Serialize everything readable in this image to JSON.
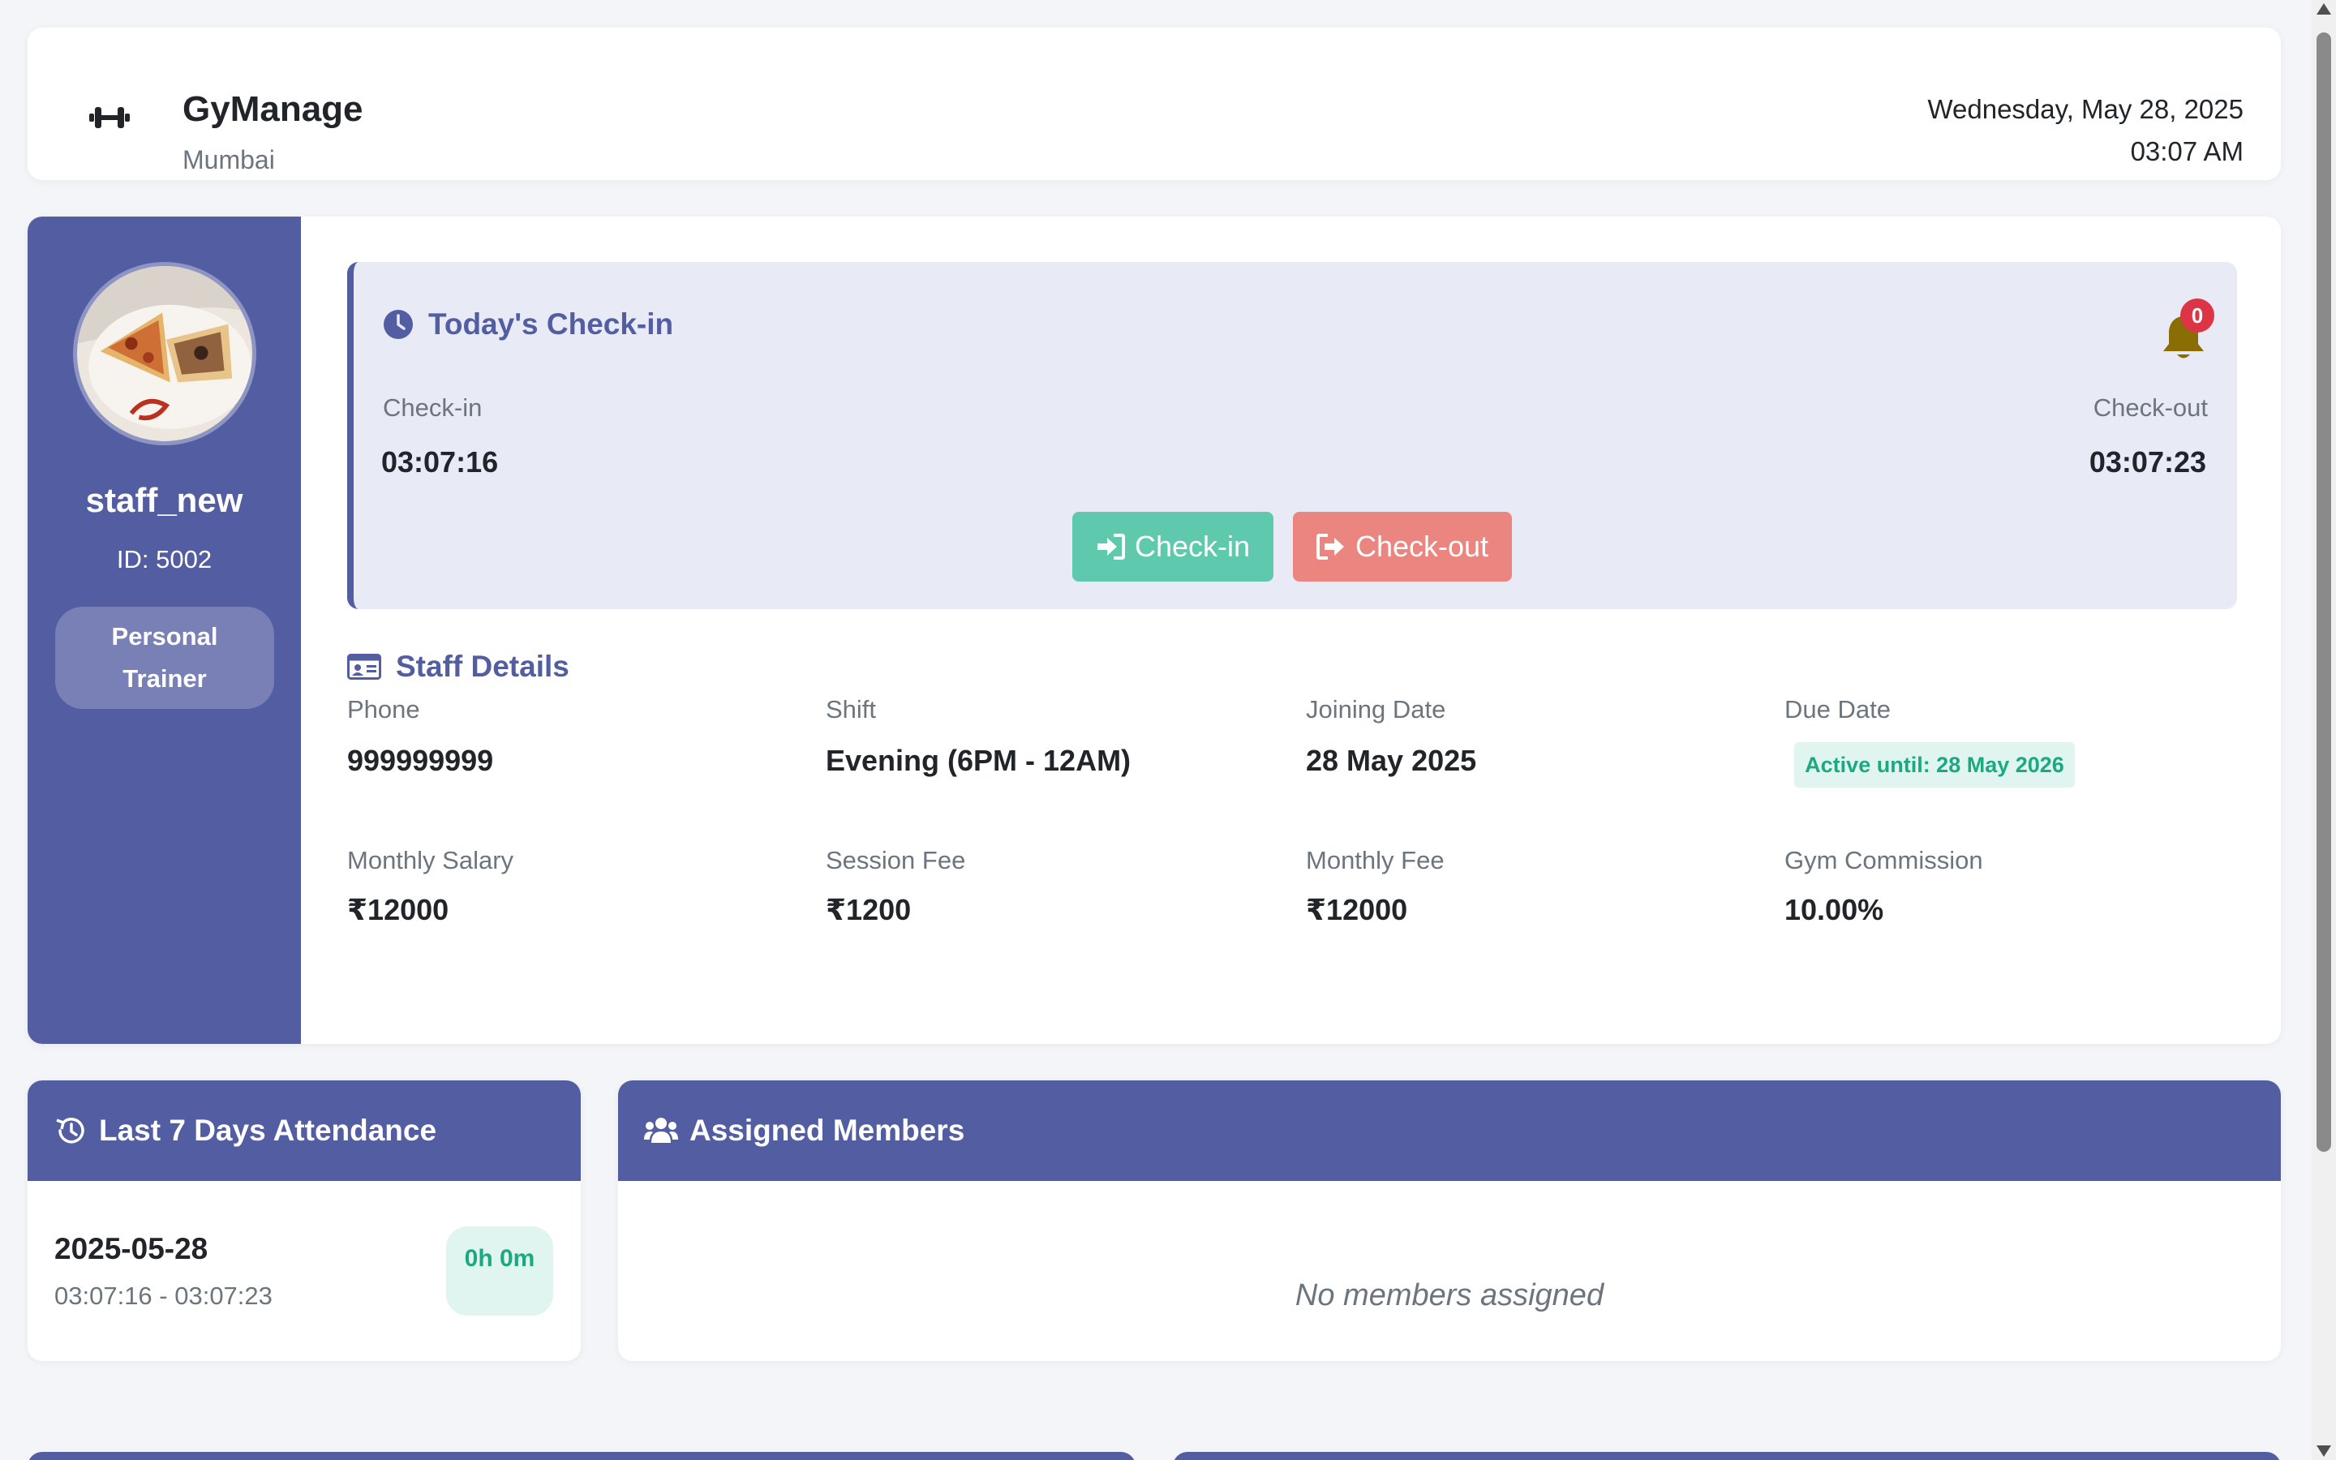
{
  "header": {
    "logo_icon": "dumbbell-icon",
    "title": "GyManage",
    "city": "Mumbai",
    "date": "Wednesday, May 28, 2025",
    "time": "03:07 AM"
  },
  "profile": {
    "name": "staff_new",
    "id_label": "ID: 5002",
    "role": "Personal Trainer"
  },
  "checkin": {
    "title": "Today's Check-in",
    "notification_count": "0",
    "checkin_label": "Check-in",
    "checkin_time": "03:07:16",
    "checkout_label": "Check-out",
    "checkout_time": "03:07:23",
    "checkin_button": "Check-in",
    "checkout_button": "Check-out"
  },
  "details": {
    "title": "Staff Details",
    "phone_label": "Phone",
    "phone": "999999999",
    "shift_label": "Shift",
    "shift": "Evening (6PM - 12AM)",
    "joining_label": "Joining Date",
    "joining": "28 May 2025",
    "due_label": "Due Date",
    "due_badge": "Active until: 28 May 2026",
    "salary_label": "Monthly Salary",
    "salary": "₹12000",
    "session_fee_label": "Session Fee",
    "session_fee": "₹1200",
    "monthly_fee_label": "Monthly Fee",
    "monthly_fee": "₹12000",
    "commission_label": "Gym Commission",
    "commission": "10.00%"
  },
  "attendance": {
    "title": "Last 7 Days Attendance",
    "rows": [
      {
        "date": "2025-05-28",
        "range": "03:07:16 - 03:07:23",
        "duration": "0h 0m"
      }
    ]
  },
  "members": {
    "title": "Assigned Members",
    "empty_text": "No members assigned"
  },
  "colors": {
    "primary": "#525da2",
    "success": "#5ec9ad",
    "danger": "#ea857f",
    "badge_red": "#dc3545",
    "bell": "#8a6d05"
  }
}
